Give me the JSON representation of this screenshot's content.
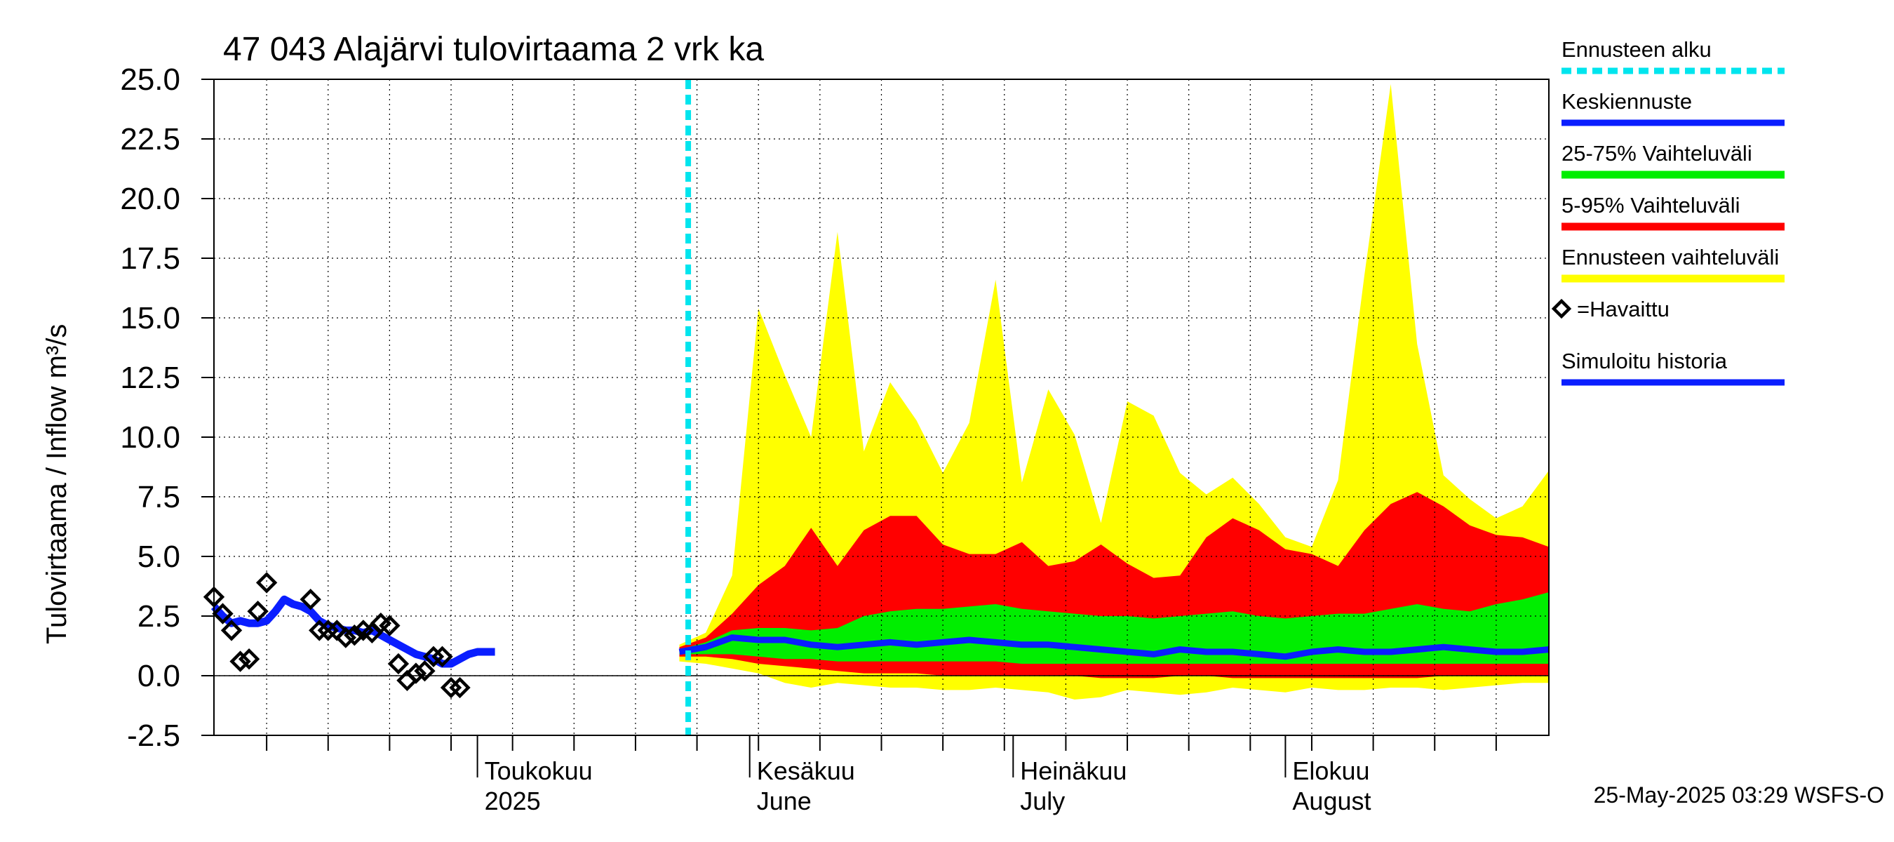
{
  "chart_data": {
    "type": "area",
    "title": "47 043 Alajärvi tulovirtaama 2 vrk ka",
    "ylabel": "Tulovirtaama / Inflow    m³/s",
    "ylim": [
      -2.5,
      25.0
    ],
    "xlim": [
      "2025-04-01",
      "2025-08-31"
    ],
    "yticks": [
      "25.0",
      "22.5",
      "20.0",
      "17.5",
      "15.0",
      "12.5",
      "10.0",
      "7.5",
      "5.0",
      "2.5",
      "0.0",
      "-2.5"
    ],
    "month_labels": [
      {
        "date": "2025-05-01",
        "top": "Toukokuu",
        "bottom": "2025"
      },
      {
        "date": "2025-06-01",
        "top": "Kesäkuu",
        "bottom": "June"
      },
      {
        "date": "2025-07-01",
        "top": "Heinäkuu",
        "bottom": "July"
      },
      {
        "date": "2025-08-01",
        "top": "Elokuu",
        "bottom": "August"
      }
    ],
    "forecast_start": "2025-05-25",
    "grid": true,
    "legend_position": "right",
    "legend": [
      {
        "label": "Ennusteen alku",
        "color": "#00e5ee",
        "style": "dashed"
      },
      {
        "label": "Keskiennuste",
        "color": "#0a1eff",
        "style": "line"
      },
      {
        "label": "25-75% Vaihteluväli",
        "color": "#00ee00",
        "style": "band"
      },
      {
        "label": "5-95% Vaihteluväli",
        "color": "#ff0000",
        "style": "band"
      },
      {
        "label": "Ennusteen vaihteluväli",
        "color": "#ffff00",
        "style": "band"
      },
      {
        "label": "=Havaittu",
        "color": "#000000",
        "style": "marker"
      },
      {
        "label": "Simuloitu historia",
        "color": "#0a1eff",
        "style": "line"
      }
    ],
    "footer": "25-May-2025 03:29 WSFS-O",
    "observed": [
      [
        "2025-04-01",
        3.3
      ],
      [
        "2025-04-02",
        2.6
      ],
      [
        "2025-04-03",
        1.9
      ],
      [
        "2025-04-04",
        0.6
      ],
      [
        "2025-04-05",
        0.7
      ],
      [
        "2025-04-06",
        2.7
      ],
      [
        "2025-04-07",
        3.9
      ],
      [
        "2025-04-12",
        3.2
      ],
      [
        "2025-04-13",
        1.9
      ],
      [
        "2025-04-14",
        1.9
      ],
      [
        "2025-04-15",
        1.9
      ],
      [
        "2025-04-16",
        1.6
      ],
      [
        "2025-04-17",
        1.7
      ],
      [
        "2025-04-18",
        1.9
      ],
      [
        "2025-04-19",
        1.8
      ],
      [
        "2025-04-20",
        2.2
      ],
      [
        "2025-04-21",
        2.1
      ],
      [
        "2025-04-22",
        0.5
      ],
      [
        "2025-04-23",
        -0.2
      ],
      [
        "2025-04-24",
        0.1
      ],
      [
        "2025-04-25",
        0.2
      ],
      [
        "2025-04-26",
        0.8
      ],
      [
        "2025-04-27",
        0.8
      ],
      [
        "2025-04-28",
        -0.5
      ],
      [
        "2025-04-29",
        -0.5
      ]
    ],
    "simulated_history": [
      [
        "2025-04-01",
        2.9
      ],
      [
        "2025-04-02",
        2.5
      ],
      [
        "2025-04-03",
        2.2
      ],
      [
        "2025-04-04",
        2.3
      ],
      [
        "2025-04-05",
        2.2
      ],
      [
        "2025-04-06",
        2.2
      ],
      [
        "2025-04-07",
        2.3
      ],
      [
        "2025-04-08",
        2.7
      ],
      [
        "2025-04-09",
        3.2
      ],
      [
        "2025-04-10",
        3.0
      ],
      [
        "2025-04-11",
        2.9
      ],
      [
        "2025-04-12",
        2.7
      ],
      [
        "2025-04-13",
        2.3
      ],
      [
        "2025-04-14",
        2.1
      ],
      [
        "2025-04-15",
        2.0
      ],
      [
        "2025-04-16",
        1.9
      ],
      [
        "2025-04-17",
        1.9
      ],
      [
        "2025-04-18",
        1.8
      ],
      [
        "2025-04-19",
        1.9
      ],
      [
        "2025-04-20",
        1.7
      ],
      [
        "2025-04-21",
        1.5
      ],
      [
        "2025-04-22",
        1.3
      ],
      [
        "2025-04-23",
        1.1
      ],
      [
        "2025-04-24",
        0.9
      ],
      [
        "2025-04-25",
        0.8
      ],
      [
        "2025-04-26",
        0.7
      ],
      [
        "2025-04-27",
        0.5
      ],
      [
        "2025-04-28",
        0.5
      ],
      [
        "2025-04-29",
        0.7
      ],
      [
        "2025-04-30",
        0.9
      ],
      [
        "2025-05-01",
        1.0
      ],
      [
        "2025-05-02",
        1.0
      ],
      [
        "2025-05-03",
        1.0
      ]
    ],
    "forecast_dates": [
      "2025-05-24",
      "2025-05-27",
      "2025-05-30",
      "2025-06-02",
      "2025-06-05",
      "2025-06-08",
      "2025-06-11",
      "2025-06-14",
      "2025-06-17",
      "2025-06-20",
      "2025-06-23",
      "2025-06-26",
      "2025-06-29",
      "2025-07-02",
      "2025-07-05",
      "2025-07-08",
      "2025-07-11",
      "2025-07-14",
      "2025-07-17",
      "2025-07-20",
      "2025-07-23",
      "2025-07-26",
      "2025-07-29",
      "2025-08-01",
      "2025-08-04",
      "2025-08-07",
      "2025-08-10",
      "2025-08-13",
      "2025-08-16",
      "2025-08-19",
      "2025-08-22",
      "2025-08-25",
      "2025-08-28",
      "2025-08-31"
    ],
    "forecast_median": [
      1.0,
      1.2,
      1.6,
      1.5,
      1.5,
      1.3,
      1.2,
      1.3,
      1.4,
      1.3,
      1.4,
      1.5,
      1.4,
      1.3,
      1.3,
      1.2,
      1.1,
      1.0,
      0.9,
      1.1,
      1.0,
      1.0,
      0.9,
      0.8,
      1.0,
      1.1,
      1.0,
      1.0,
      1.1,
      1.2,
      1.1,
      1.0,
      1.0,
      1.1
    ],
    "forecast_p25": [
      0.9,
      0.9,
      0.9,
      0.8,
      0.7,
      0.7,
      0.6,
      0.6,
      0.6,
      0.6,
      0.6,
      0.6,
      0.6,
      0.5,
      0.5,
      0.5,
      0.5,
      0.5,
      0.5,
      0.5,
      0.5,
      0.5,
      0.5,
      0.5,
      0.5,
      0.5,
      0.5,
      0.5,
      0.5,
      0.5,
      0.5,
      0.5,
      0.5,
      0.5
    ],
    "forecast_p75": [
      1.1,
      1.4,
      1.9,
      2.0,
      2.0,
      1.9,
      2.0,
      2.5,
      2.7,
      2.8,
      2.8,
      2.9,
      3.0,
      2.8,
      2.7,
      2.6,
      2.5,
      2.5,
      2.4,
      2.5,
      2.6,
      2.7,
      2.5,
      2.4,
      2.5,
      2.6,
      2.6,
      2.8,
      3.0,
      2.8,
      2.7,
      3.0,
      3.2,
      3.5
    ],
    "forecast_p5": [
      0.8,
      0.8,
      0.7,
      0.5,
      0.4,
      0.3,
      0.2,
      0.1,
      0.1,
      0.1,
      0.0,
      0.0,
      0.0,
      0.0,
      0.0,
      0.0,
      -0.1,
      -0.1,
      -0.1,
      0.0,
      0.0,
      -0.1,
      -0.1,
      -0.1,
      -0.1,
      -0.1,
      -0.1,
      -0.1,
      -0.1,
      0.0,
      0.0,
      0.0,
      0.0,
      0.0
    ],
    "forecast_p95": [
      1.2,
      1.6,
      2.6,
      3.8,
      4.6,
      6.2,
      4.6,
      6.1,
      6.7,
      6.7,
      5.5,
      5.1,
      5.1,
      5.6,
      4.6,
      4.8,
      5.5,
      4.7,
      4.1,
      4.2,
      5.8,
      6.6,
      6.1,
      5.3,
      5.1,
      4.6,
      6.1,
      7.2,
      7.7,
      7.1,
      6.3,
      5.9,
      5.8,
      5.4
    ],
    "forecast_min": [
      0.6,
      0.5,
      0.3,
      0.1,
      -0.3,
      -0.5,
      -0.3,
      -0.4,
      -0.5,
      -0.5,
      -0.6,
      -0.6,
      -0.5,
      -0.6,
      -0.7,
      -1.0,
      -0.9,
      -0.6,
      -0.7,
      -0.8,
      -0.7,
      -0.5,
      -0.6,
      -0.7,
      -0.5,
      -0.6,
      -0.6,
      -0.5,
      -0.5,
      -0.6,
      -0.5,
      -0.4,
      -0.3,
      -0.3
    ],
    "forecast_max": [
      1.3,
      1.8,
      4.2,
      15.4,
      12.6,
      10.0,
      18.6,
      9.4,
      12.3,
      10.7,
      8.5,
      10.6,
      16.6,
      8.1,
      12.0,
      10.1,
      6.4,
      11.5,
      10.9,
      8.5,
      7.6,
      8.3,
      7.2,
      5.8,
      5.4,
      8.2,
      16.8,
      24.8,
      13.9,
      8.4,
      7.4,
      6.6,
      7.1,
      8.6
    ]
  }
}
